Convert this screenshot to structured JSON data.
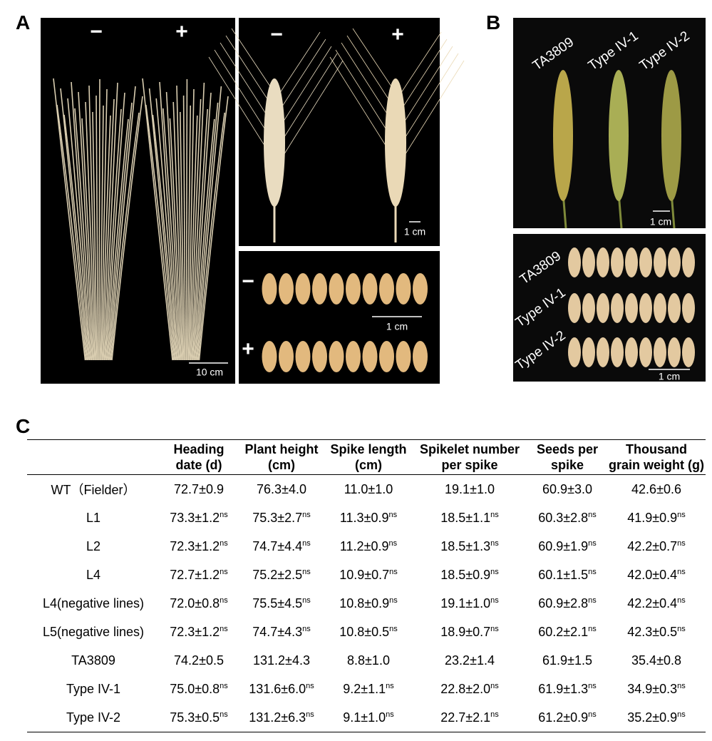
{
  "panel_a": {
    "label": "A",
    "plants": {
      "minus": "−",
      "plus": "+",
      "scale": "10 cm"
    },
    "spikes": {
      "minus": "−",
      "plus": "+",
      "scale": "1 cm"
    },
    "seeds": {
      "minus": "−",
      "plus": "+",
      "scale": "1 cm"
    }
  },
  "panel_b": {
    "label": "B",
    "spikes": {
      "labels": [
        "TA3809",
        "Type IV-1",
        "Type IV-2"
      ],
      "scale": "1 cm"
    },
    "seeds": {
      "labels": [
        "TA3809",
        "Type IV-1",
        "Type IV-2"
      ],
      "scale": "1 cm"
    }
  },
  "panel_c": {
    "label": "C",
    "table": {
      "header": [
        [],
        [
          "Heading",
          "date (d)"
        ],
        [
          "Plant height",
          "(cm)"
        ],
        [
          "Spike length",
          "(cm)"
        ],
        [
          "Spikelet number",
          "per spike"
        ],
        [
          "Seeds per",
          "spike"
        ],
        [
          "Thousand",
          "grain weight (g)"
        ]
      ],
      "rows": [
        [
          "WT（Fielder）",
          {
            "text": "72.7±0.9"
          },
          {
            "text": "76.3±4.0"
          },
          {
            "text": "11.0±1.0"
          },
          {
            "text": "19.1±1.0"
          },
          {
            "text": "60.9±3.0"
          },
          {
            "text": "42.6±0.6"
          }
        ],
        [
          "L1",
          {
            "text": "73.3±1.2",
            "sup": "ns"
          },
          {
            "text": "75.3±2.7",
            "sup": "ns"
          },
          {
            "text": "11.3±0.9",
            "sup": "ns"
          },
          {
            "text": "18.5±1.1",
            "sup": "ns"
          },
          {
            "text": "60.3±2.8",
            "sup": "ns"
          },
          {
            "text": "41.9±0.9",
            "sup": "ns"
          }
        ],
        [
          "L2",
          {
            "text": "72.3±1.2",
            "sup": "ns"
          },
          {
            "text": "74.7±4.4",
            "sup": "ns"
          },
          {
            "text": "11.2±0.9",
            "sup": "ns"
          },
          {
            "text": "18.5±1.3",
            "sup": "ns"
          },
          {
            "text": "60.9±1.9",
            "sup": "ns"
          },
          {
            "text": "42.2±0.7",
            "sup": "ns"
          }
        ],
        [
          "L4",
          {
            "text": "72.7±1.2",
            "sup": "ns"
          },
          {
            "text": "75.2±2.5",
            "sup": "ns"
          },
          {
            "text": "10.9±0.7",
            "sup": "ns"
          },
          {
            "text": "18.5±0.9",
            "sup": "ns"
          },
          {
            "text": "60.1±1.5",
            "sup": "ns"
          },
          {
            "text": "42.0±0.4",
            "sup": "ns"
          }
        ],
        [
          "L4(negative lines)",
          {
            "text": "72.0±0.8",
            "sup": "ns"
          },
          {
            "text": "75.5±4.5",
            "sup": "ns"
          },
          {
            "text": "10.8±0.9",
            "sup": "ns"
          },
          {
            "text": "19.1±1.0",
            "sup": "ns"
          },
          {
            "text": "60.9±2.8",
            "sup": "ns"
          },
          {
            "text": "42.2±0.4",
            "sup": "ns"
          }
        ],
        [
          "L5(negative lines)",
          {
            "text": "72.3±1.2",
            "sup": "ns"
          },
          {
            "text": "74.7±4.3",
            "sup": "ns"
          },
          {
            "text": "10.8±0.5",
            "sup": "ns"
          },
          {
            "text": "18.9±0.7",
            "sup": "ns"
          },
          {
            "text": "60.2±2.1",
            "sup": "ns"
          },
          {
            "text": "42.3±0.5",
            "sup": "ns"
          }
        ],
        [
          "TA3809",
          {
            "text": "74.2±0.5"
          },
          {
            "text": "131.2±4.3"
          },
          {
            "text": "8.8±1.0"
          },
          {
            "text": "23.2±1.4"
          },
          {
            "text": "61.9±1.5"
          },
          {
            "text": "35.4±0.8"
          }
        ],
        [
          "Type IV-1",
          {
            "text": "75.0±0.8",
            "sup": "ns"
          },
          {
            "text": "131.6±6.0",
            "sup": "ns"
          },
          {
            "text": "9.2±1.1",
            "sup": "ns"
          },
          {
            "text": "22.8±2.0",
            "sup": "ns"
          },
          {
            "text": "61.9±1.3",
            "sup": "ns"
          },
          {
            "text": "34.9±0.3",
            "sup": "ns"
          }
        ],
        [
          "Type IV-2",
          {
            "text": "75.3±0.5",
            "sup": "ns"
          },
          {
            "text": "131.2±6.3",
            "sup": "ns"
          },
          {
            "text": "9.1±1.0",
            "sup": "ns"
          },
          {
            "text": "22.7±2.1",
            "sup": "ns"
          },
          {
            "text": "61.2±0.9",
            "sup": "ns"
          },
          {
            "text": "35.2±0.9",
            "sup": "ns"
          }
        ]
      ]
    }
  }
}
